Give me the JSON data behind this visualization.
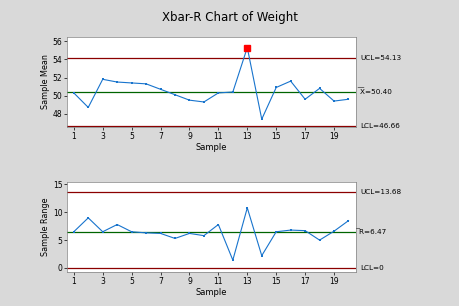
{
  "title": "Xbar-R Chart of Weight",
  "xbar_data": [
    50.3,
    48.7,
    51.8,
    51.5,
    51.4,
    51.3,
    50.7,
    50.1,
    49.5,
    49.3,
    50.3,
    50.4,
    55.3,
    47.4,
    50.9,
    51.6,
    49.6,
    50.8,
    49.4,
    49.6
  ],
  "range_data": [
    6.5,
    9.0,
    6.5,
    7.8,
    6.5,
    6.3,
    6.2,
    5.3,
    6.2,
    5.8,
    7.8,
    1.4,
    10.8,
    2.2,
    6.5,
    6.8,
    6.7,
    5.0,
    6.6,
    8.5
  ],
  "xbar_ucl": 54.13,
  "xbar_cl": 50.4,
  "xbar_lcl": 46.66,
  "range_ucl": 13.68,
  "range_cl": 6.47,
  "range_lcl": 0,
  "out_of_control_xbar_idx": 12,
  "ucl_color": "#8B0000",
  "cl_color": "#006400",
  "line_color": "#1874CD",
  "marker_color": "#1874CD",
  "bg_color": "#D9D9D9",
  "plot_bg": "#FFFFFF",
  "xlabel": "Sample",
  "xbar_ylabel": "Sample Mean",
  "range_ylabel": "Sample Range",
  "xbar_ylim": [
    46.5,
    56.5
  ],
  "range_ylim": [
    -0.8,
    15.5
  ],
  "xbar_yticks": [
    48,
    50,
    52,
    54,
    56
  ],
  "range_yticks": [
    0,
    5,
    10,
    15
  ],
  "xticks": [
    1,
    3,
    5,
    7,
    9,
    11,
    13,
    15,
    17,
    19
  ],
  "n_samples": 20,
  "xbar_label_ucl": "UCL=54.13",
  "xbar_label_cl": "͞X=50.40",
  "xbar_label_lcl": "LCL=46.66",
  "range_label_ucl": "UCL=13.68",
  "range_label_cl": "̅R=6.47",
  "range_label_lcl": "LCL=0"
}
